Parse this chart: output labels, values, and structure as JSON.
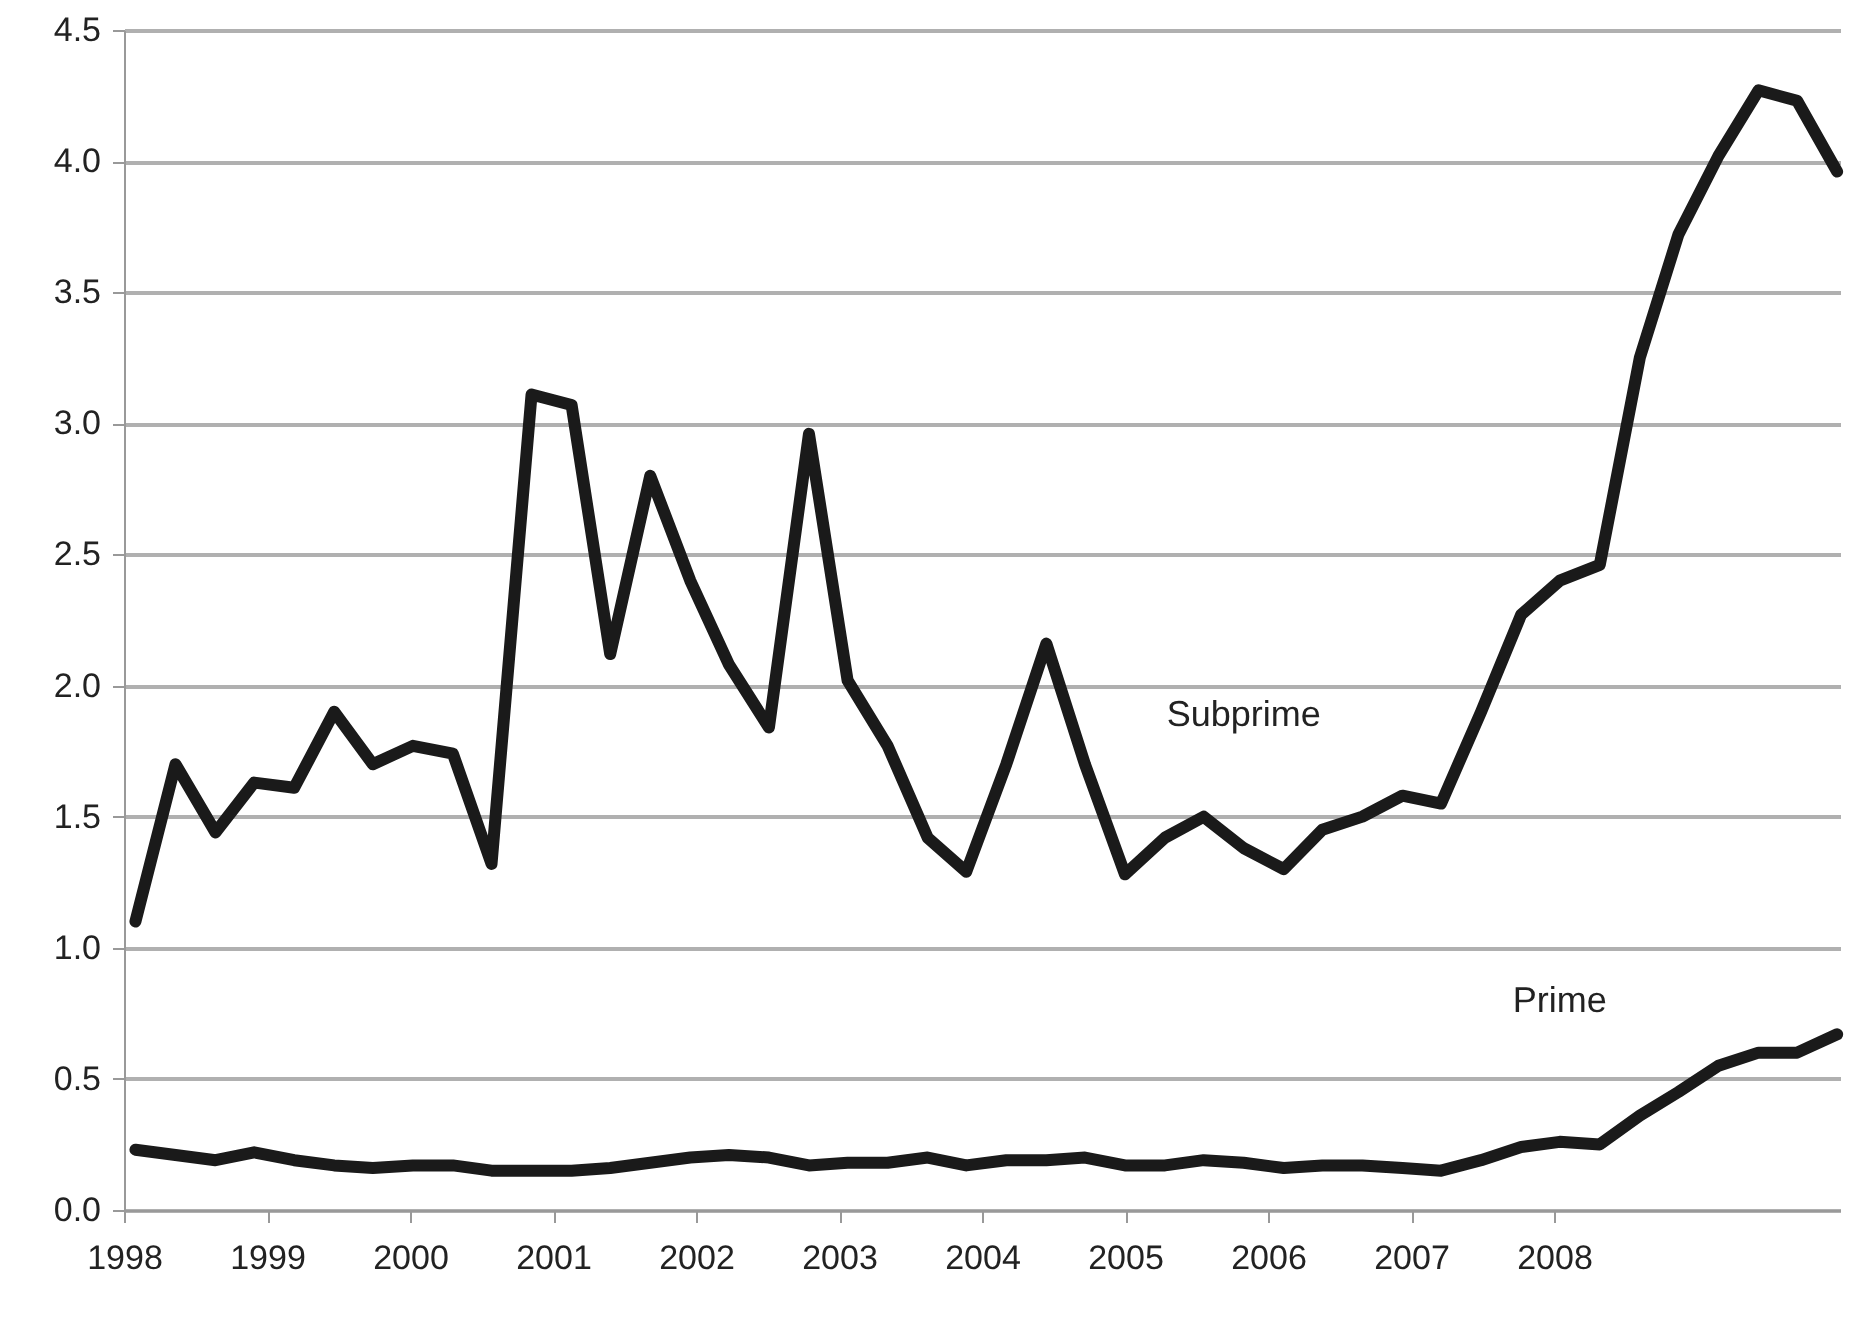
{
  "chart_data": {
    "type": "line",
    "x": [
      1998.08,
      1998.36,
      1998.64,
      1998.91,
      1999.19,
      1999.47,
      1999.74,
      2000.02,
      2000.3,
      2000.57,
      2000.85,
      2001.13,
      2001.4,
      2001.68,
      2001.96,
      2002.23,
      2002.51,
      2002.79,
      2003.06,
      2003.34,
      2003.62,
      2003.89,
      2004.17,
      2004.45,
      2004.72,
      2005.0,
      2005.28,
      2005.55,
      2005.83,
      2006.11,
      2006.38,
      2006.66,
      2006.94,
      2007.21,
      2007.49,
      2007.77,
      2008.04,
      2008.32,
      2008.6,
      2008.87,
      2009.15,
      2009.43,
      2009.7,
      2009.98
    ],
    "series": [
      {
        "name": "Subprime",
        "color": "#1a1a1a",
        "values": [
          1.1,
          1.7,
          1.44,
          1.63,
          1.61,
          1.9,
          1.7,
          1.77,
          1.74,
          1.32,
          3.11,
          3.07,
          2.12,
          2.8,
          2.4,
          2.08,
          1.84,
          2.96,
          2.02,
          1.77,
          1.42,
          1.29,
          1.7,
          2.16,
          1.7,
          1.28,
          1.42,
          1.5,
          1.38,
          1.3,
          1.45,
          1.5,
          1.58,
          1.55,
          1.9,
          2.27,
          2.4,
          2.46,
          3.25,
          3.72,
          4.02,
          4.27,
          4.23,
          3.96
        ]
      },
      {
        "name": "Prime",
        "color": "#1a1a1a",
        "values": [
          0.23,
          0.21,
          0.19,
          0.22,
          0.19,
          0.17,
          0.16,
          0.17,
          0.17,
          0.15,
          0.15,
          0.15,
          0.16,
          0.18,
          0.2,
          0.21,
          0.2,
          0.17,
          0.18,
          0.18,
          0.2,
          0.17,
          0.19,
          0.19,
          0.2,
          0.17,
          0.17,
          0.19,
          0.18,
          0.16,
          0.17,
          0.17,
          0.16,
          0.15,
          0.19,
          0.24,
          0.26,
          0.25,
          0.36,
          0.45,
          0.55,
          0.6,
          0.6,
          0.67
        ]
      }
    ],
    "xlim": [
      1998,
      2010
    ],
    "xticks": [
      1998,
      1999,
      2000,
      2001,
      2002,
      2003,
      2004,
      2005,
      2006,
      2007,
      2008
    ],
    "ylim": [
      0,
      4.5
    ],
    "yticks": [
      {
        "value": 0,
        "label": "0.0"
      },
      0.5,
      {
        "value": 1,
        "label": "1.0"
      },
      1.5,
      {
        "value": 2,
        "label": "2.0"
      },
      2.5,
      {
        "value": 3,
        "label": "3.0"
      },
      3.5,
      {
        "value": 4,
        "label": "4.0"
      },
      4.5
    ],
    "grid": "y",
    "line_style": "solid",
    "marker": "none"
  }
}
